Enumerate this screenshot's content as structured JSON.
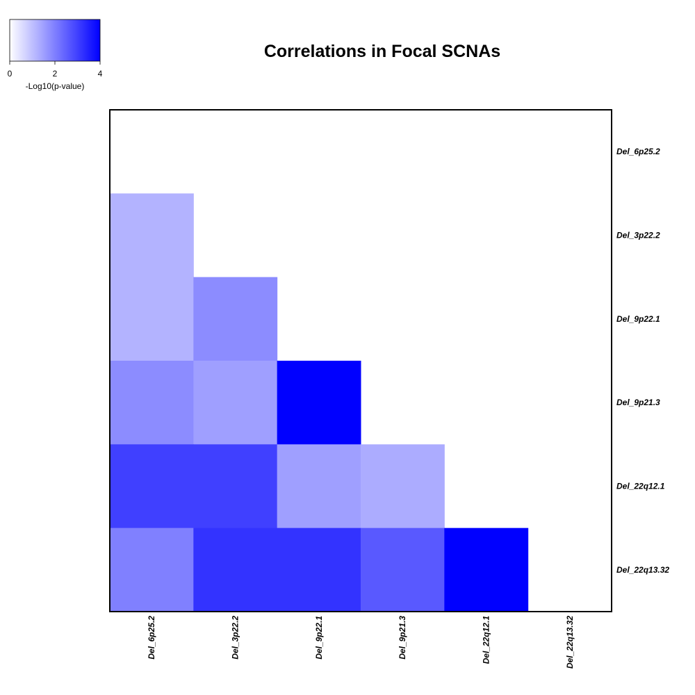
{
  "chart_data": {
    "type": "heatmap",
    "title": "Correlations in Focal SCNAs",
    "rows": [
      "Del_6p25.2",
      "Del_3p22.2",
      "Del_9p22.1",
      "Del_9p21.3",
      "Del_22q12.1",
      "Del_22q13.32"
    ],
    "columns": [
      "Del_6p25.2",
      "Del_3p22.2",
      "Del_9p22.1",
      "Del_9p21.3",
      "Del_22q12.1",
      "Del_22q13.32"
    ],
    "values": [
      [
        null,
        null,
        null,
        null,
        null,
        null
      ],
      [
        1.2,
        null,
        null,
        null,
        null,
        null
      ],
      [
        1.2,
        1.8,
        null,
        null,
        null,
        null
      ],
      [
        1.8,
        1.5,
        4.0,
        null,
        null,
        null
      ],
      [
        3.0,
        3.0,
        1.5,
        1.3,
        null,
        null
      ],
      [
        2.0,
        3.2,
        3.2,
        2.6,
        4.0,
        null
      ]
    ],
    "color_scale": {
      "low_color": "#ffffff",
      "high_color": "#0000ff",
      "range": [
        0,
        4
      ]
    },
    "legend": {
      "title": "-Log10(p-value)",
      "ticks": [
        "0",
        "2",
        "4"
      ],
      "tick_values": [
        0,
        2,
        4
      ],
      "placement": "top-left"
    },
    "grid": false
  }
}
